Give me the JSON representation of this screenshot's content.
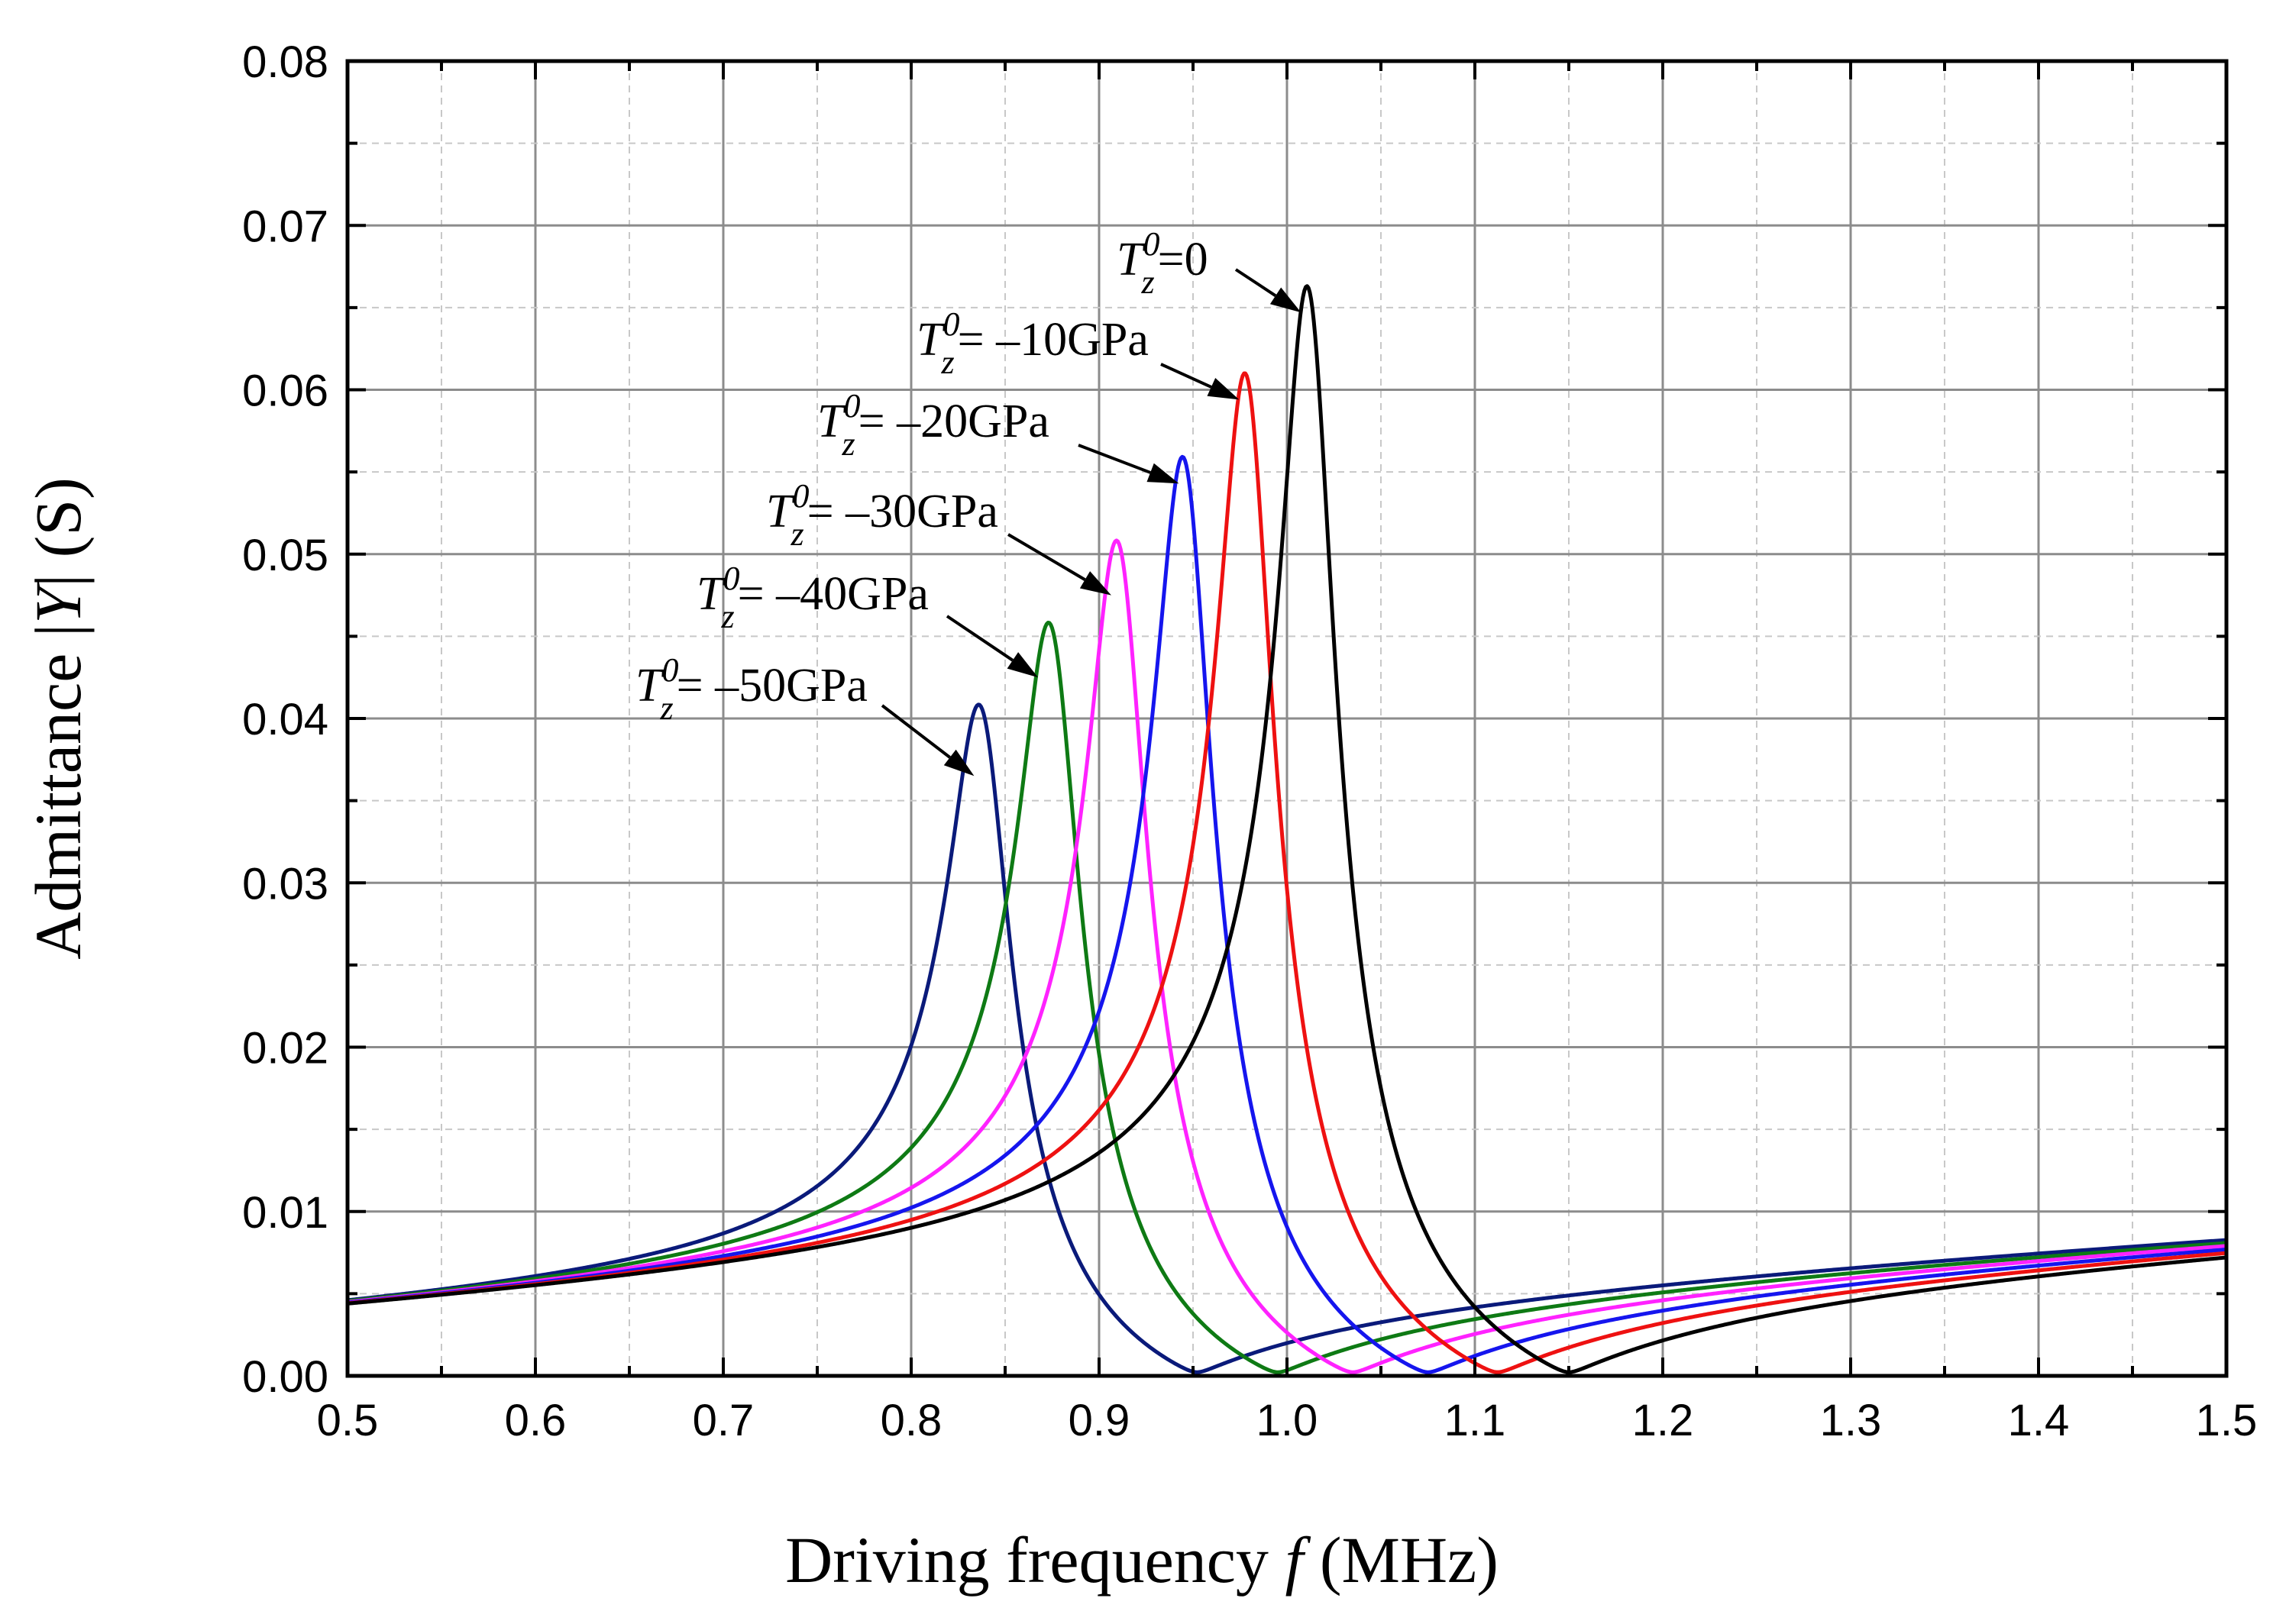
{
  "chart_data": {
    "type": "line",
    "title": "",
    "xlabel": {
      "prefix": "Driving frequency ",
      "var": "f",
      "suffix": " (MHz)"
    },
    "ylabel": {
      "prefix": "Admittance |",
      "var": "Y",
      "suffix": "| (S)"
    },
    "xlim": [
      0.5,
      1.5
    ],
    "ylim": [
      0.0,
      0.08
    ],
    "grid": true,
    "x_ticks": [
      "0.5",
      "0.6",
      "0.7",
      "0.8",
      "0.9",
      "1.0",
      "1.1",
      "1.2",
      "1.3",
      "1.4",
      "1.5"
    ],
    "y_ticks": [
      "0.00",
      "0.01",
      "0.02",
      "0.03",
      "0.04",
      "0.05",
      "0.06",
      "0.07",
      "0.08"
    ],
    "series": [
      {
        "name": "T_z^0 = -50GPa",
        "color": "#0a1a7a",
        "peak_f": 0.838,
        "peak_Y": 0.0405,
        "anti_f": 0.952
      },
      {
        "name": "T_z^0 = -40GPa",
        "color": "#0e7a14",
        "peak_f": 0.875,
        "peak_Y": 0.0455,
        "anti_f": 0.995
      },
      {
        "name": "T_z^0 = -30GPa",
        "color": "#ff22ff",
        "peak_f": 0.911,
        "peak_Y": 0.0505,
        "anti_f": 1.035
      },
      {
        "name": "T_z^0 = -20GPa",
        "color": "#1515ee",
        "peak_f": 0.946,
        "peak_Y": 0.0556,
        "anti_f": 1.075
      },
      {
        "name": "T_z^0 = -10GPa",
        "color": "#ee1111",
        "peak_f": 0.979,
        "peak_Y": 0.0607,
        "anti_f": 1.112
      },
      {
        "name": "T_z^0 = 0",
        "color": "#000000",
        "peak_f": 1.012,
        "peak_Y": 0.066,
        "anti_f": 1.15
      }
    ],
    "annotations": [
      {
        "T": "T",
        "sup": "0",
        "sub": "z",
        "text": "=0",
        "target_f": 1.0075,
        "target_Y": 0.0647
      },
      {
        "T": "T",
        "sup": "0",
        "sub": "z",
        "text": "= –10GPa",
        "target_f": 0.9745,
        "target_Y": 0.0594
      },
      {
        "T": "T",
        "sup": "0",
        "sub": "z",
        "text": "= –20GPa",
        "target_f": 0.9425,
        "target_Y": 0.0543
      },
      {
        "T": "T",
        "sup": "0",
        "sub": "z",
        "text": "= –30GPa",
        "target_f": 0.9065,
        "target_Y": 0.0475
      },
      {
        "T": "T",
        "sup": "0",
        "sub": "z",
        "text": "= –40GPa",
        "target_f": 0.8675,
        "target_Y": 0.0425
      },
      {
        "T": "T",
        "sup": "0",
        "sub": "z",
        "text": "= –50GPa",
        "target_f": 0.8335,
        "target_Y": 0.0365
      }
    ]
  }
}
